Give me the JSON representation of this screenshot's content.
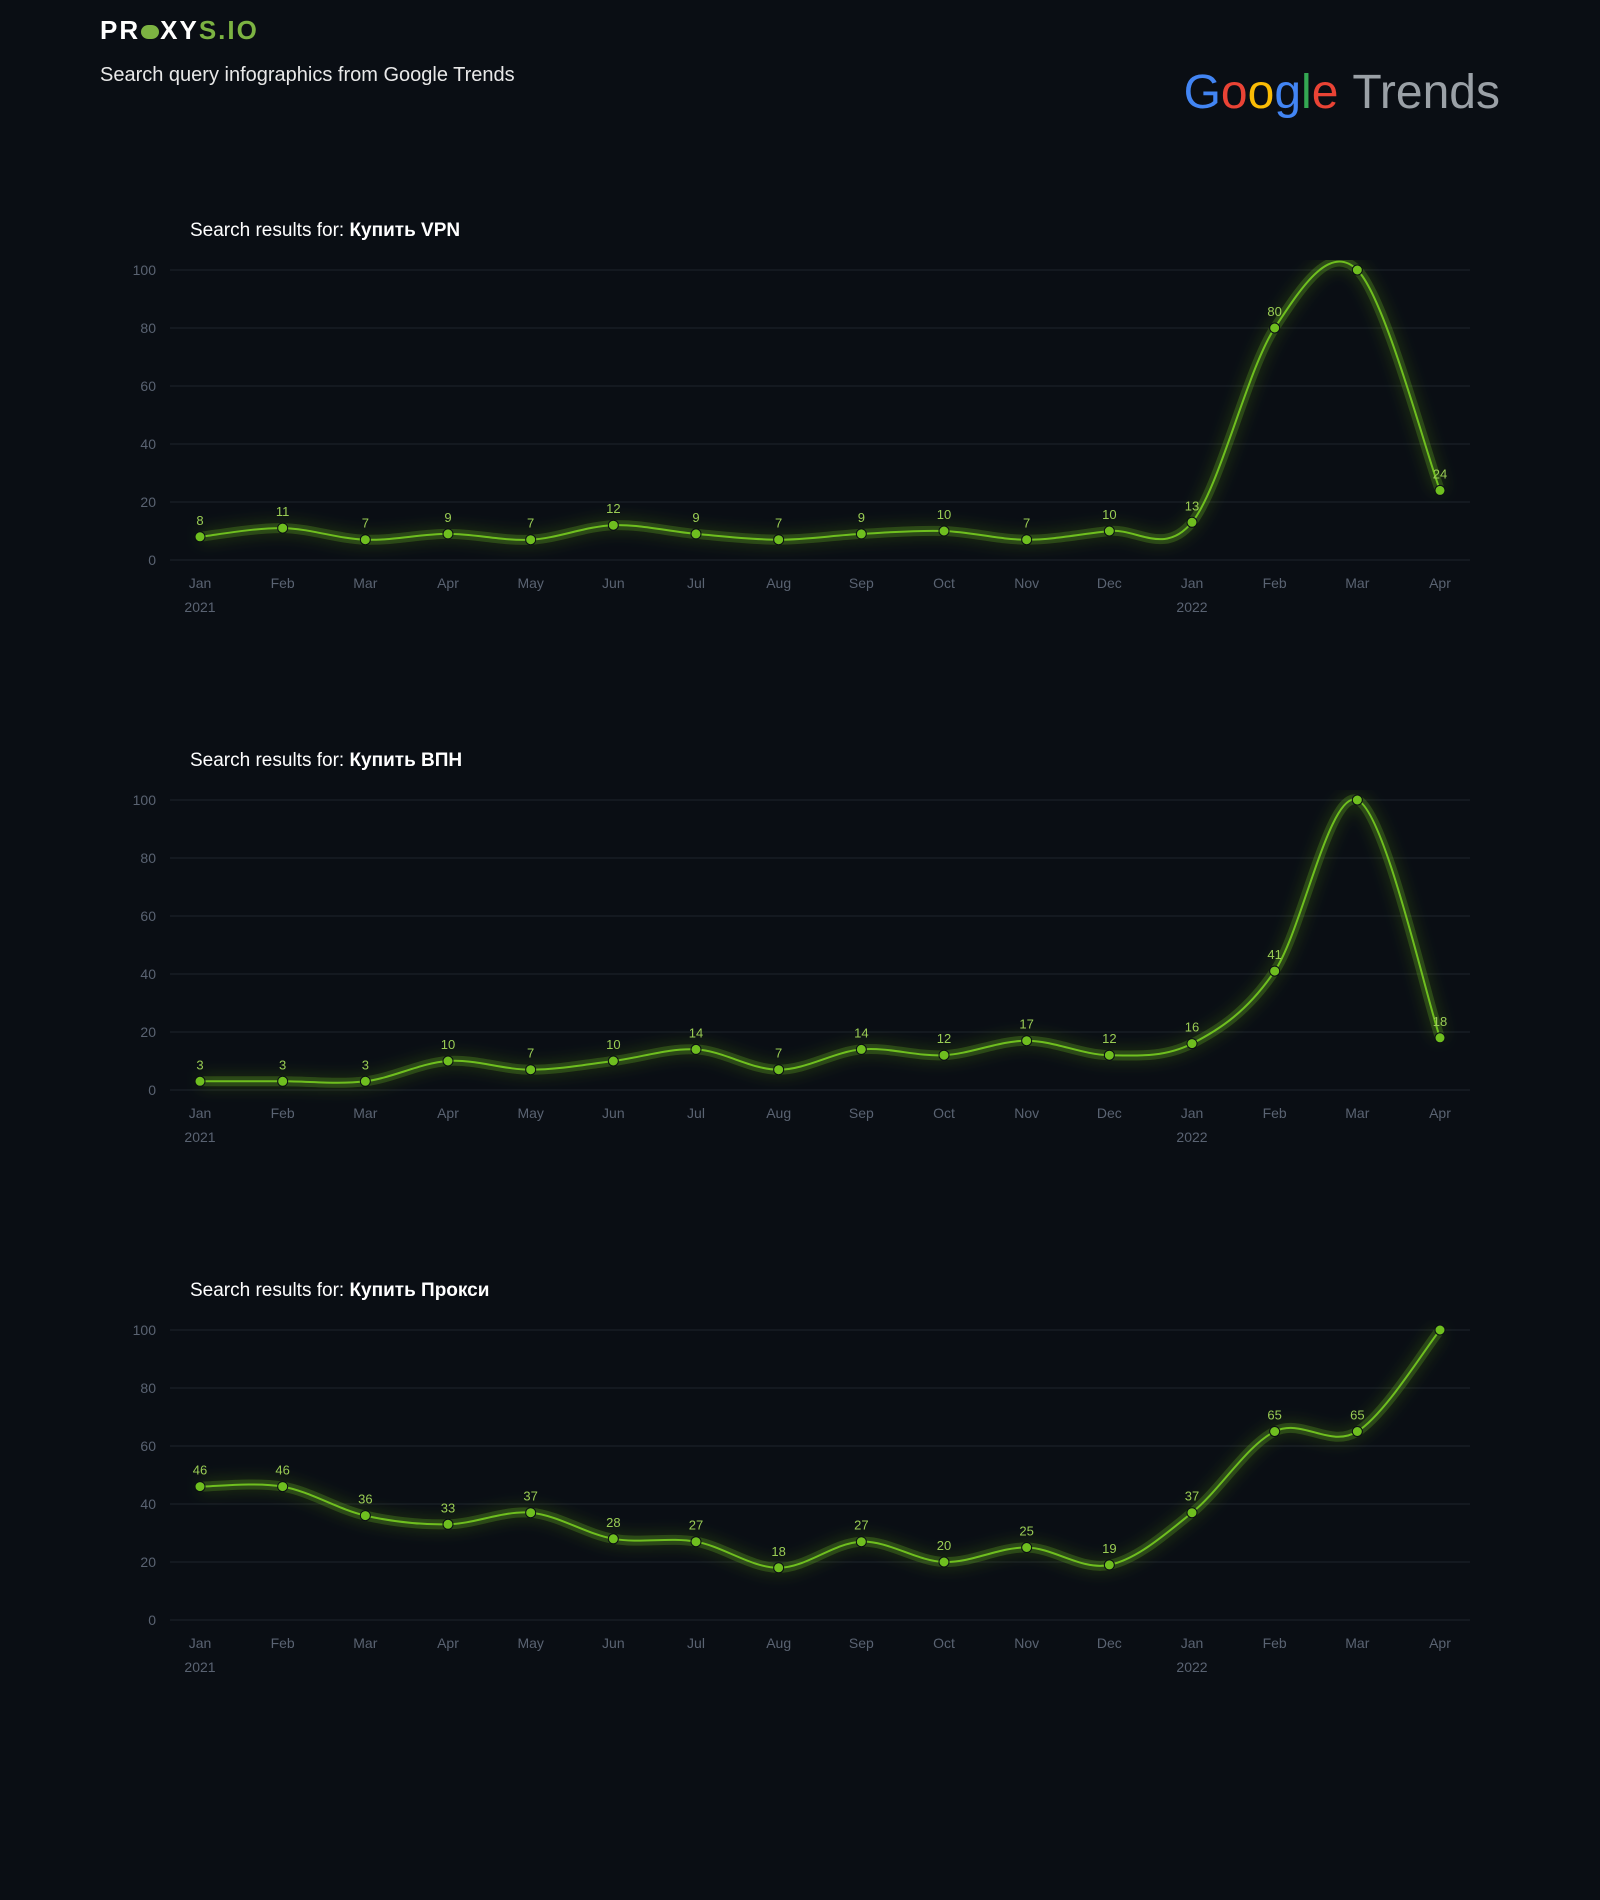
{
  "brand": {
    "logo_part1": "PR",
    "logo_part2": "XY",
    "logo_part3": "S.IO",
    "subtitle": "Search query infographics from Google Trends"
  },
  "google_trends_label": "Trends",
  "chart_style": {
    "background": "#0a0e14",
    "grid_color": "#1f242c",
    "axis_label_color": "#5a6372",
    "line_color": "#6fbf1f",
    "marker_fill": "#6fbf1f",
    "marker_stroke": "#0a0e14",
    "marker_radius": 5,
    "line_width": 2,
    "value_label_color": "#9acd54",
    "value_label_fontsize": 13,
    "axis_fontsize": 14,
    "ylim": [
      0,
      100
    ],
    "ytick_step": 20,
    "glow_color": "#6fbf1f",
    "glow_opacity": 0.25
  },
  "x_labels": [
    "Jan",
    "Feb",
    "Mar",
    "Apr",
    "May",
    "Jun",
    "Jul",
    "Aug",
    "Sep",
    "Oct",
    "Nov",
    "Dec",
    "Jan",
    "Feb",
    "Mar",
    "Apr"
  ],
  "x_year_markers": {
    "0": "2021",
    "12": "2022"
  },
  "charts": [
    {
      "title_prefix": "Search results for: ",
      "query": "Купить VPN",
      "values": [
        8,
        11,
        7,
        9,
        7,
        12,
        9,
        7,
        9,
        10,
        7,
        10,
        13,
        80,
        100,
        24
      ]
    },
    {
      "title_prefix": "Search results for: ",
      "query": "Купить ВПН",
      "values": [
        3,
        3,
        3,
        10,
        7,
        10,
        14,
        7,
        14,
        12,
        17,
        12,
        16,
        41,
        100,
        18
      ]
    },
    {
      "title_prefix": "Search results for: ",
      "query": "Купить Прокси",
      "values": [
        46,
        46,
        36,
        33,
        37,
        28,
        27,
        18,
        27,
        20,
        25,
        19,
        37,
        65,
        65,
        100
      ]
    }
  ]
}
